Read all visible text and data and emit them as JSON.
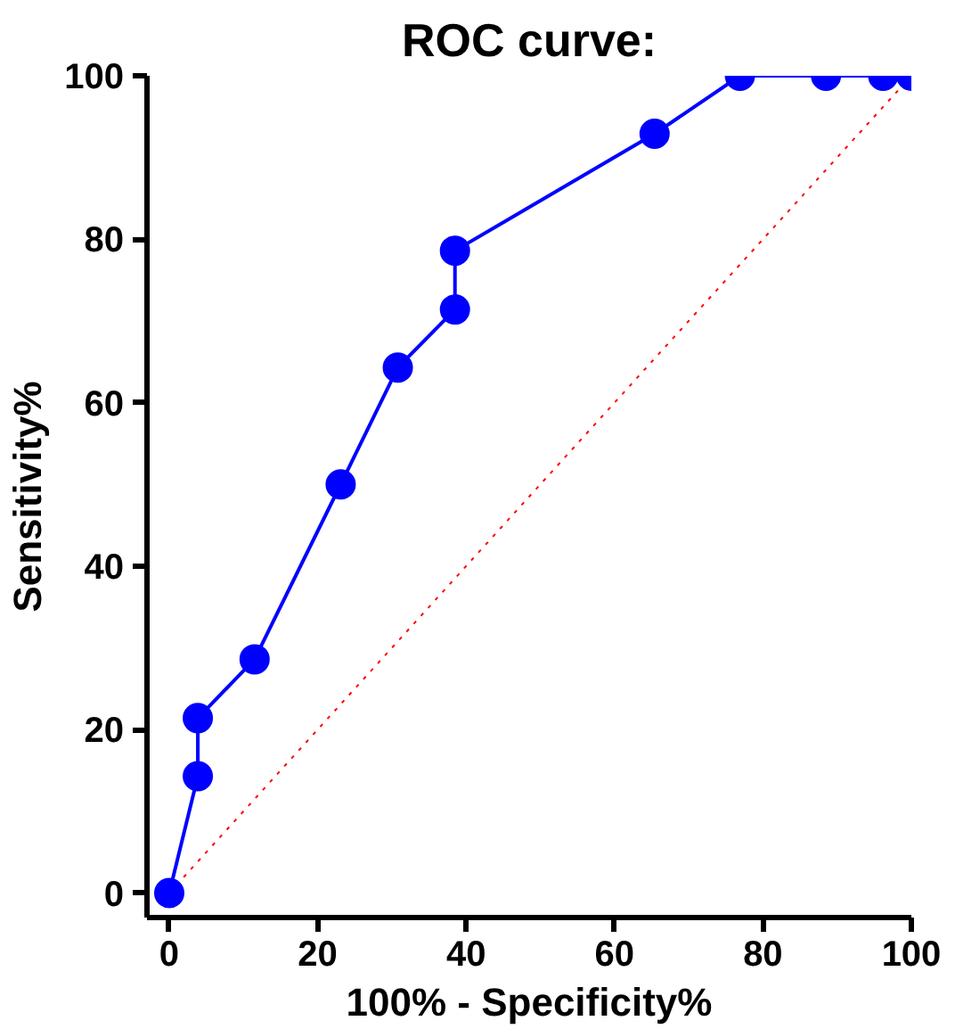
{
  "chart_data": {
    "type": "line",
    "title": "ROC curve:",
    "xlabel": "100% - Specificity%",
    "ylabel": "Sensitivity%",
    "xlim": [
      -3,
      100
    ],
    "ylim": [
      -3,
      100
    ],
    "xticks": [
      0,
      20,
      40,
      60,
      80,
      100
    ],
    "yticks": [
      0,
      20,
      40,
      60,
      80,
      100
    ],
    "grid": false,
    "series": [
      {
        "type": "line",
        "color": "#ff0000",
        "line_style": "dotted",
        "marker": "none",
        "x": [
          0,
          100
        ],
        "values": [
          0,
          100
        ]
      },
      {
        "color": "#0000ff",
        "line_style": "solid",
        "marker": "circle",
        "x": [
          0,
          3.85,
          3.85,
          11.5,
          23.1,
          30.8,
          38.5,
          38.5,
          65.4,
          76.9,
          88.5,
          96.2,
          100
        ],
        "values": [
          0,
          14.3,
          21.4,
          28.6,
          50,
          64.3,
          71.4,
          78.6,
          92.9,
          100,
          100,
          100,
          100
        ]
      }
    ]
  }
}
